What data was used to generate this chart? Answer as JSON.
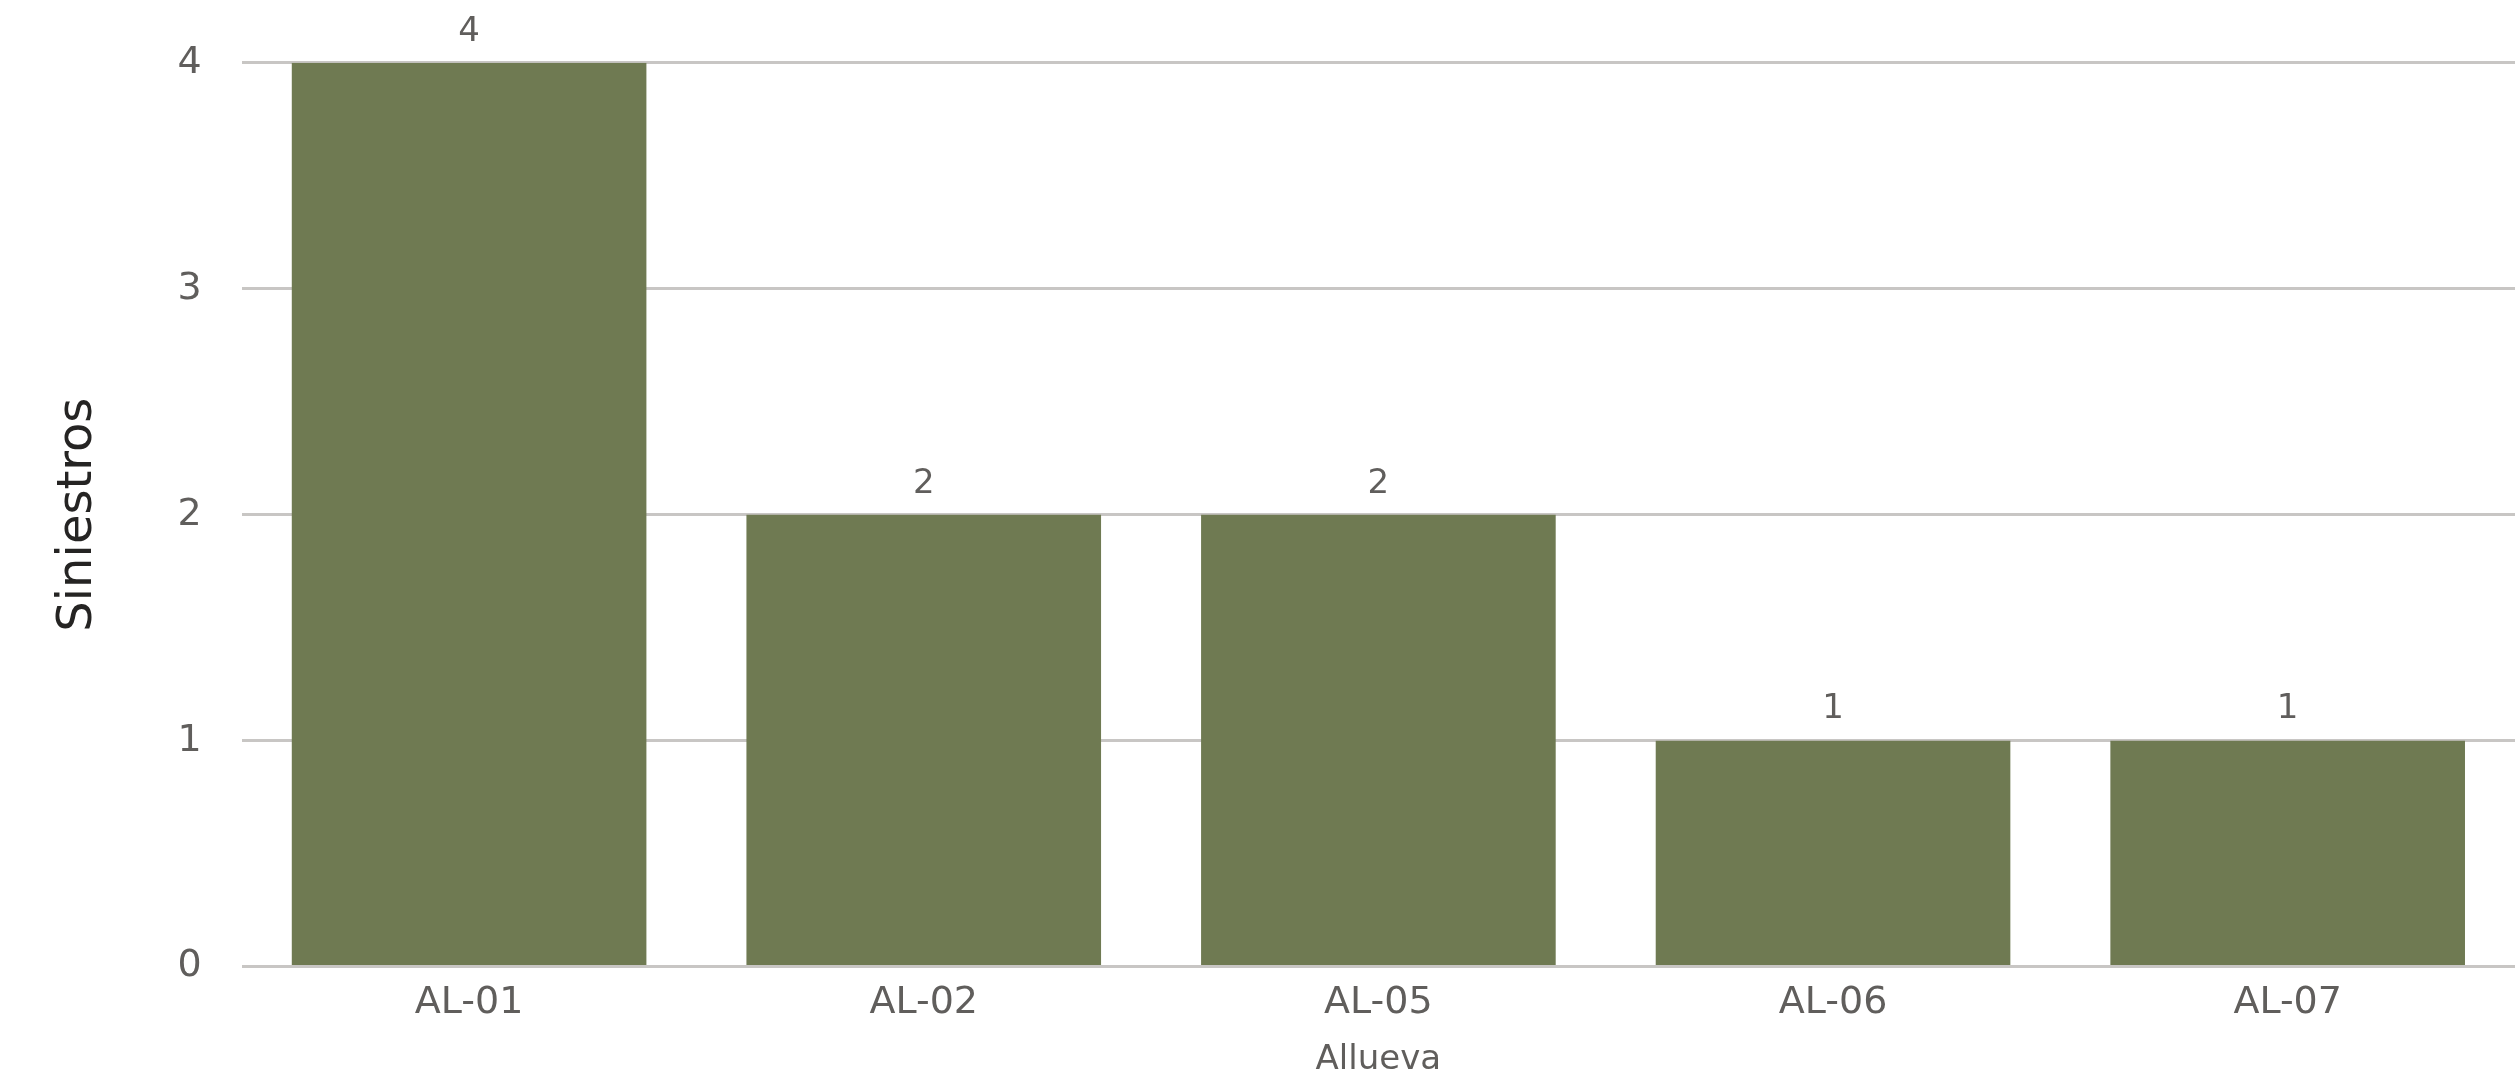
{
  "chart_data": {
    "type": "bar",
    "ylabel": "Siniestros",
    "xlabel": "Allueva",
    "categories": [
      "AL-01",
      "AL-02",
      "AL-05",
      "AL-06",
      "AL-07"
    ],
    "values": [
      4,
      2,
      2,
      1,
      1
    ],
    "color": "#6f7a52",
    "ylim": [
      0,
      4
    ],
    "yticks": [
      0,
      1,
      2,
      3,
      4
    ],
    "grid": "y",
    "data_labels": true,
    "legend": false
  }
}
